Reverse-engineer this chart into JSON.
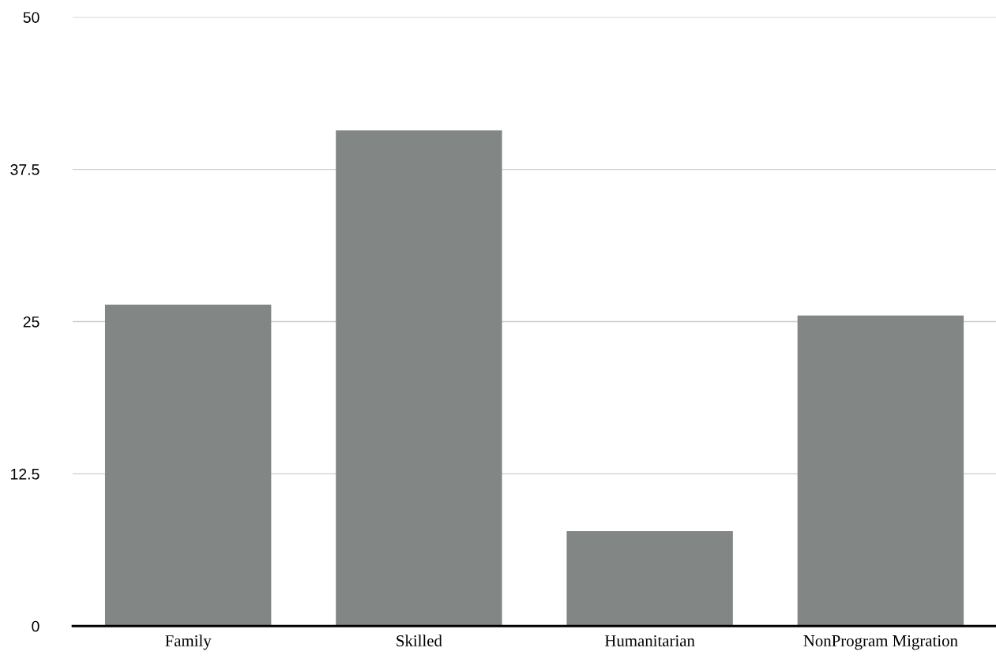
{
  "chart_data": {
    "type": "bar",
    "categories": [
      "Family",
      "Skilled",
      "Humanitarian",
      "NonProgram Migration"
    ],
    "values": [
      26.4,
      40.7,
      7.8,
      25.5
    ],
    "color": "#828785",
    "ylim": [
      0,
      50
    ],
    "yticks": [
      0,
      12.5,
      25,
      37.5,
      50
    ],
    "grid": "y"
  }
}
